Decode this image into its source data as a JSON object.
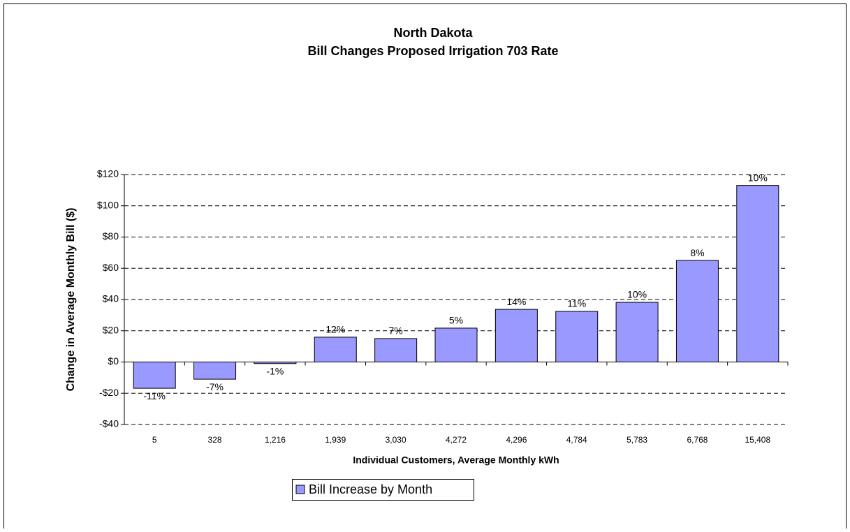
{
  "chart_data": {
    "type": "bar",
    "title": "North Dakota",
    "subtitle": "Bill Changes Proposed Irrigation 703 Rate",
    "y_label": "Change in Average Monthly Bill  ($)",
    "x_label": "Individual Customers, Average Monthly kWh",
    "categories": [
      "5",
      "328",
      "1,216",
      "1,939",
      "3,030",
      "4,272",
      "4,296",
      "4,784",
      "5,783",
      "6,768",
      "15,408"
    ],
    "series": [
      {
        "name": "Bill Increase by Month",
        "color": "#9999ff",
        "values": [
          -16.8,
          -11,
          -1,
          15.9,
          15,
          21.7,
          33.7,
          32.4,
          38.2,
          65,
          113
        ],
        "bar_labels": [
          "-11%",
          "-7%",
          "-1%",
          "12%",
          "7%",
          "5%",
          "14%",
          "11%",
          "10%",
          "8%",
          "10%"
        ]
      }
    ],
    "ylim": [
      -40,
      120
    ],
    "yticks": [
      {
        "value": -40,
        "label": "-$40"
      },
      {
        "value": -20,
        "label": "-$20"
      },
      {
        "value": 0,
        "label": "$0"
      },
      {
        "value": 20,
        "label": "$20"
      },
      {
        "value": 40,
        "label": "$40"
      },
      {
        "value": 60,
        "label": "$60"
      },
      {
        "value": 80,
        "label": "$80"
      },
      {
        "value": 100,
        "label": "$100"
      },
      {
        "value": 120,
        "label": "$120"
      }
    ],
    "grid": true
  }
}
